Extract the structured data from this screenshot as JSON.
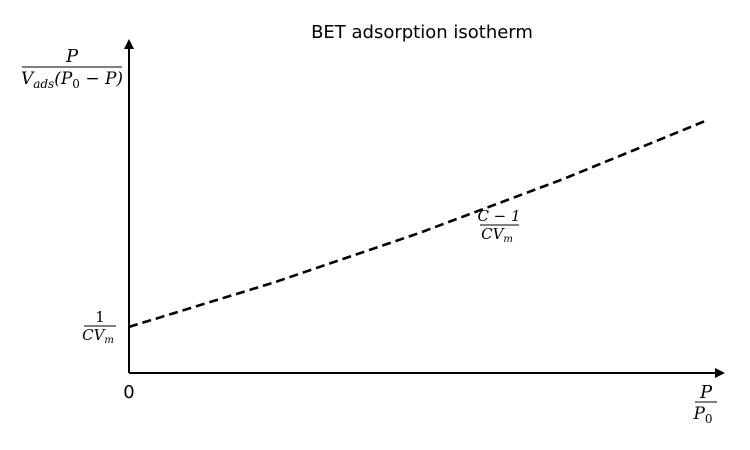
{
  "chart_data": {
    "type": "line",
    "title": "BET adsorption isotherm",
    "origin_label": "0",
    "y_axis_label": {
      "numerator": "P",
      "denominator_parts": [
        "V",
        "ads",
        "(P",
        "0",
        " − P)"
      ]
    },
    "x_axis_label": {
      "numerator": "P",
      "denominator_parts": [
        "P",
        "0"
      ]
    },
    "intercept_label": {
      "numerator": "1",
      "denominator_parts": [
        "CV",
        "m"
      ]
    },
    "slope_label": {
      "numerator": "C − 1",
      "denominator_parts": [
        "CV",
        "m"
      ]
    },
    "series": [
      {
        "style": "dashed",
        "color": "#000000",
        "x": [
          0.0,
          0.25,
          0.5,
          0.75,
          1.0
        ],
        "y": [
          0.14,
          0.275,
          0.425,
          0.59,
          0.77
        ]
      }
    ],
    "xlim": [
      0,
      1.02
    ],
    "ylim": [
      0,
      1.0
    ],
    "grid": false,
    "legend": "none"
  }
}
